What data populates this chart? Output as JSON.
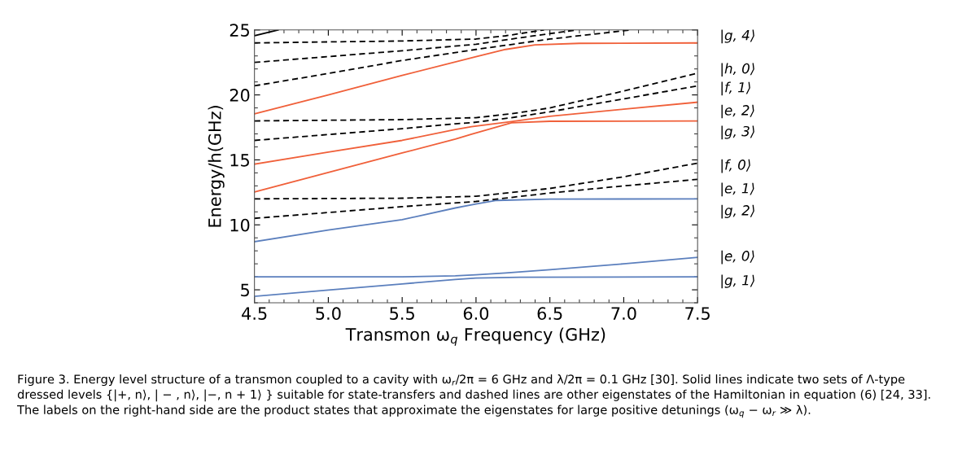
{
  "chart_data": {
    "type": "line",
    "xlabel": "Transmon ω$_{q}$ Frequency (GHz)",
    "ylabel": "Energy/h(GHz)",
    "xlim": [
      4.5,
      7.5
    ],
    "ylim": [
      4,
      25
    ],
    "xticks": [
      {
        "value": 4.5,
        "label": "4.5"
      },
      {
        "value": 5.0,
        "label": "5.0"
      },
      {
        "value": 5.5,
        "label": "5.5"
      },
      {
        "value": 6.0,
        "label": "6.0"
      },
      {
        "value": 6.5,
        "label": "6.5"
      },
      {
        "value": 7.0,
        "label": "7.0"
      },
      {
        "value": 7.5,
        "label": "7.5"
      }
    ],
    "yticks": [
      5,
      10,
      15,
      20,
      25
    ],
    "grid": false,
    "legend": false,
    "marker": "none",
    "series": [
      {
        "color": "#5b7fbd",
        "line_style": "solid",
        "x": [
          4.5,
          5.0,
          5.5,
          5.86,
          6.0,
          6.3,
          7.5
        ],
        "values": [
          4.5,
          4.98,
          5.45,
          5.8,
          5.9,
          5.97,
          6.0
        ]
      },
      {
        "color": "#5b7fbd",
        "line_style": "solid",
        "x": [
          4.5,
          5.5,
          5.86,
          6.0,
          6.2,
          6.5,
          7.0,
          7.5
        ],
        "values": [
          6.0,
          6.0,
          6.08,
          6.15,
          6.3,
          6.55,
          7.0,
          7.5
        ]
      },
      {
        "color": "#5b7fbd",
        "line_style": "solid",
        "x": [
          4.5,
          5.0,
          5.5,
          5.86,
          6.0,
          6.14,
          6.5,
          7.5
        ],
        "values": [
          8.7,
          9.6,
          10.4,
          11.3,
          11.6,
          11.88,
          11.98,
          12.0
        ]
      },
      {
        "color": "#000000",
        "line_style": "dashed",
        "x": [
          4.5,
          5.0,
          5.5,
          6.0,
          6.5,
          7.0,
          7.5
        ],
        "values": [
          10.5,
          10.95,
          11.4,
          11.8,
          12.45,
          13.0,
          13.5
        ]
      },
      {
        "color": "#000000",
        "line_style": "dashed",
        "x": [
          4.5,
          5.5,
          6.0,
          6.5,
          7.0,
          7.5
        ],
        "values": [
          12.0,
          12.05,
          12.2,
          12.8,
          13.7,
          14.75
        ]
      },
      {
        "color": "#f0603a",
        "line_style": "solid",
        "x": [
          4.5,
          5.0,
          5.5,
          5.86,
          5.97,
          6.24,
          6.5,
          7.5
        ],
        "values": [
          12.53,
          14.03,
          15.53,
          16.6,
          16.98,
          17.85,
          17.97,
          18.0
        ]
      },
      {
        "color": "#f0603a",
        "line_style": "solid",
        "x": [
          4.5,
          5.0,
          5.5,
          5.86,
          5.97,
          6.24,
          6.5,
          7.0,
          7.5
        ],
        "values": [
          14.67,
          15.6,
          16.5,
          17.34,
          17.55,
          17.95,
          18.35,
          18.9,
          19.44
        ]
      },
      {
        "color": "#000000",
        "line_style": "dashed",
        "x": [
          4.5,
          5.0,
          5.5,
          5.86,
          5.97,
          6.24,
          6.5,
          7.0,
          7.5
        ],
        "values": [
          16.5,
          16.95,
          17.4,
          17.78,
          17.86,
          18.25,
          18.7,
          19.7,
          20.69
        ]
      },
      {
        "color": "#000000",
        "line_style": "dashed",
        "x": [
          4.5,
          5.0,
          5.5,
          6.0,
          6.24,
          6.5,
          7.0,
          7.5
        ],
        "values": [
          18.0,
          18.05,
          18.1,
          18.25,
          18.55,
          19.0,
          20.3,
          21.67
        ]
      },
      {
        "color": "#f0603a",
        "line_style": "solid",
        "x": [
          4.5,
          5.0,
          5.5,
          6.0,
          6.2,
          6.4,
          6.7,
          7.5
        ],
        "values": [
          18.54,
          20.0,
          21.5,
          22.95,
          23.5,
          23.85,
          23.97,
          24.0
        ]
      },
      {
        "color": "#000000",
        "line_style": "dashed",
        "x": [
          4.5,
          5.0,
          5.5,
          6.0,
          6.5,
          7.05
        ],
        "values": [
          20.7,
          21.65,
          22.65,
          23.5,
          24.3,
          25.0
        ]
      },
      {
        "color": "#000000",
        "line_style": "dashed",
        "x": [
          4.5,
          5.0,
          5.5,
          6.0,
          6.3,
          6.68
        ],
        "values": [
          22.5,
          22.95,
          23.4,
          23.9,
          24.4,
          25.0
        ]
      },
      {
        "color": "#000000",
        "line_style": "dashed",
        "x": [
          4.5,
          5.0,
          5.5,
          6.0,
          6.2,
          6.46
        ],
        "values": [
          24.0,
          24.08,
          24.15,
          24.3,
          24.55,
          25.0
        ]
      },
      {
        "color": "#000000",
        "line_style": "solid",
        "x": [
          4.5,
          4.66
        ],
        "values": [
          24.55,
          25.0
        ]
      }
    ],
    "annotations": [
      "|g, 4⟩",
      "|h, 0⟩",
      "|f, 1⟩",
      "|e, 2⟩",
      "|g, 3⟩",
      "|f, 0⟩",
      "|e, 1⟩",
      "|g, 2⟩",
      "|e, 0⟩",
      "|g, 1⟩",
      "Figure 3. Energy level structure of a transmon coupled to a cavity with ω$_{r}$/2π = 6 GHz and λ/2π = 0.1 GHz [30]. Solid lines indicate two sets of Λ-type dressed levels {|+, n⟩, | − , n⟩, |−, n + 1⟩ } suitable for state-transfers and dashed lines are other eigenstates of the Hamiltonian in equation (6) [24, 33]. The labels on the right-hand side are the product states that approximate the eigenstates for large positive detunings (ω$_{q}$ − ω$_{r}$ ≫ λ)."
    ]
  }
}
